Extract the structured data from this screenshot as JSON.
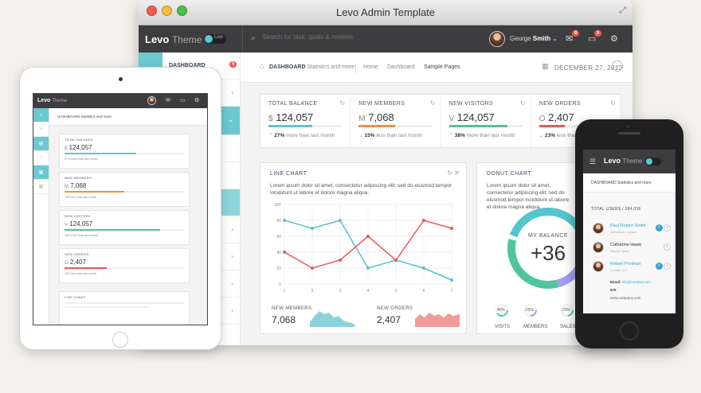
{
  "window": {
    "title": "Levo Admin Template"
  },
  "topbar": {
    "brand": "Levo",
    "brand_sub": "Theme",
    "live_label": "Live",
    "search_placeholder": "Search for task, goals & reviews",
    "user_first": "George",
    "user_last": "Smith",
    "mail_badge": "8",
    "inbox_badge": "5"
  },
  "sidebar": {
    "dashboard_label": "DASHBOARD",
    "dashboard_badge": "5"
  },
  "header": {
    "page_title": "DASHBOARD",
    "page_subtitle": "Statistics and more",
    "breadcrumb": [
      "Home",
      "Dashboard",
      "Sample Pages"
    ],
    "date": "DECEMBER 27, 2013"
  },
  "stats": [
    {
      "label": "TOTAL BALANCE",
      "prefix": "$",
      "value": "124,057",
      "percent": "27%",
      "compare": "more than last month",
      "color": "#5ec7d0",
      "fill": 0.6
    },
    {
      "label": "NEW MEMBERS",
      "prefix": "M",
      "value": "7,068",
      "percent": "15%",
      "compare": "less than last month",
      "color": "#f0913c",
      "fill": 0.5
    },
    {
      "label": "NEW VISITORS",
      "prefix": "V",
      "value": "124,057",
      "percent": "38%",
      "compare": "more than last month",
      "color": "#4dc1a1",
      "fill": 0.8
    },
    {
      "label": "NEW ORDERS",
      "prefix": "O",
      "value": "2,407",
      "percent": "23%",
      "compare": "less than last month",
      "color": "#ea5a58",
      "fill": 0.35
    }
  ],
  "line_card": {
    "title": "LINE CHART",
    "text": "Lorem ipsum dolor sit amet, consectetur adipiscing elit, sed do eiusmod tempor incididunt ut labore et dolore magna aliqua.",
    "members_label": "NEW MEMBERS",
    "members_value": "7,068",
    "orders_label": "NEW ORDERS",
    "orders_value": "2,407"
  },
  "donut_card": {
    "title": "DONUT CHART",
    "text": "Lorem ipsum dolor sit amet, consectetur adipiscing elit, sed do eiusmod tempor incididunt ut labore et dolore magna aliqua.",
    "center_label": "MY BALANCE",
    "center_value": "+36",
    "mini": [
      {
        "label": "VISITS",
        "value": "40%"
      },
      {
        "label": "MEMBERS",
        "value": "25%"
      },
      {
        "label": "SALES",
        "value": "23%"
      }
    ]
  },
  "chart_data": {
    "type": "line",
    "title": "LINE CHART",
    "x": [
      1,
      2,
      3,
      4,
      5,
      6,
      7
    ],
    "ylim": [
      0,
      100
    ],
    "yticks": [
      0,
      20,
      40,
      60,
      80,
      100
    ],
    "grid": true,
    "series": [
      {
        "color": "#4fc4cd",
        "values": [
          80,
          70,
          80,
          20,
          30,
          20,
          5
        ]
      },
      {
        "color": "#ea5a58",
        "values": [
          40,
          20,
          30,
          60,
          30,
          80,
          70
        ]
      }
    ]
  },
  "tablet": {
    "brand": "Levo",
    "brand_sub": "Theme",
    "header": "DASHBOARD Statistics and more",
    "cards": [
      {
        "label": "TOTAL BALANCE",
        "prefix": "$",
        "value": "124,057",
        "compare": "27% more than last month",
        "color": "#5ec7d0",
        "fill": 0.6
      },
      {
        "label": "NEW MEMBERS",
        "prefix": "M",
        "value": "7,068",
        "compare": "15% less than last month",
        "color": "#f0913c",
        "fill": 0.5
      },
      {
        "label": "NEW VISITORS",
        "prefix": "V",
        "value": "124,057",
        "compare": "38% more than last month",
        "color": "#4dc1a1",
        "fill": 0.8
      },
      {
        "label": "NEW ORDERS",
        "prefix": "O",
        "value": "2,407",
        "compare": "23% less than last month",
        "color": "#ea5a58",
        "fill": 0.35
      }
    ],
    "line_title": "LINE CHART"
  },
  "phone": {
    "brand": "Levo",
    "brand_sub": "Theme",
    "header": "DASHBOARD Statistics and more",
    "total_users": "TOTAL USERS / 184,036",
    "users": [
      {
        "name": "Paul Robert Smith",
        "loc": "Manhattan, United",
        "color": "#3aa0c8"
      },
      {
        "name": "Catherine Hawk",
        "loc": "Madrid Spain",
        "color": "#333333"
      },
      {
        "name": "Robert Prolman",
        "loc": "London, UK",
        "color": "#3aa0c8"
      }
    ],
    "email_label": "Email:",
    "email": "info@contact.com",
    "phone_label": "575",
    "website": "www.company.com"
  }
}
